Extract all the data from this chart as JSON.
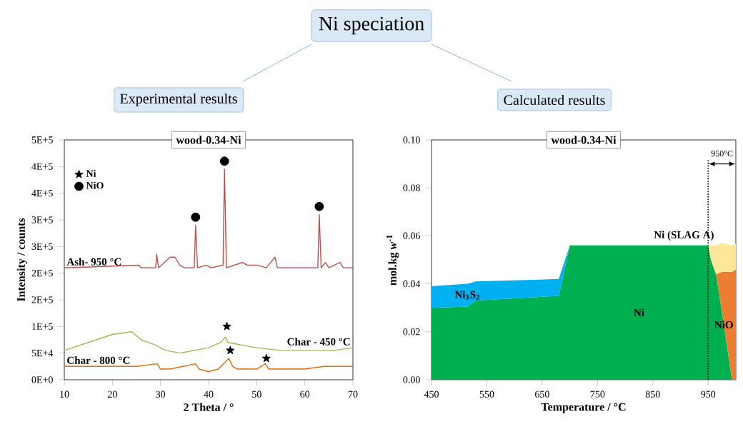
{
  "chart_data": [
    {
      "type": "other",
      "title": "Ni speciation"
    },
    {
      "type": "line",
      "title": "Experimental results",
      "subtitle": "wood-0.34-Ni",
      "xlabel": "2 Theta / °",
      "ylabel": "Intensity / counts",
      "xlim": [
        10,
        70
      ],
      "xticks": [
        10,
        20,
        30,
        40,
        50,
        60,
        70
      ],
      "ylim": [
        0,
        450000
      ],
      "yticks": [
        {
          "value": 0,
          "label": "0E+0"
        },
        {
          "value": 50000,
          "label": "5E+4"
        },
        {
          "value": 100000,
          "label": "1E+5"
        },
        {
          "value": 150000,
          "label": "2E+5"
        },
        {
          "value": 200000,
          "label": "2E+5"
        },
        {
          "value": 250000,
          "label": "3E+5"
        },
        {
          "value": 300000,
          "label": "3E+5"
        },
        {
          "value": 350000,
          "label": "4E+5"
        },
        {
          "value": 400000,
          "label": "4E+5"
        },
        {
          "value": 450000,
          "label": "5E+5"
        }
      ],
      "legend": "top left",
      "grid": false,
      "series": [
        {
          "name": "Ash- 950 °C",
          "color": "#c0504d",
          "x": [
            10,
            25.5,
            26,
            29,
            29.2,
            29.6,
            32,
            33,
            34,
            35,
            37,
            37.3,
            37.7,
            39.5,
            40.5,
            43,
            43.3,
            43.7,
            47,
            48,
            50,
            52,
            53.8,
            54.3,
            62.7,
            63,
            63.4,
            64.3,
            65,
            67.3,
            68,
            70
          ],
          "values": [
            210000,
            215000,
            210000,
            210000,
            235000,
            210000,
            230000,
            230000,
            215000,
            210000,
            210000,
            290000,
            210000,
            215000,
            210000,
            215000,
            395000,
            210000,
            220000,
            215000,
            215000,
            210000,
            230000,
            210000,
            210000,
            310000,
            210000,
            220000,
            210000,
            220000,
            210000,
            210000
          ]
        },
        {
          "name": "Char - 450 °C",
          "color": "#9bbb59",
          "x": [
            10,
            15,
            20,
            24,
            26,
            29,
            31,
            34,
            37,
            40,
            42.5,
            43.5,
            44,
            47,
            50,
            55,
            58,
            62,
            66,
            70
          ],
          "values": [
            55000,
            70000,
            85000,
            90000,
            75000,
            65000,
            55000,
            50000,
            55000,
            60000,
            70000,
            80000,
            70000,
            65000,
            60000,
            55000,
            55000,
            55000,
            55000,
            60000
          ]
        },
        {
          "name": "Char - 800 °C",
          "color": "#e46c0a",
          "x": [
            10,
            20,
            25,
            29.3,
            30,
            32,
            37.3,
            38,
            40,
            42,
            44.2,
            45,
            46,
            50,
            51.8,
            52.5,
            54,
            56,
            60,
            64,
            70
          ],
          "values": [
            25000,
            25000,
            25000,
            30000,
            20000,
            20000,
            30000,
            20000,
            15000,
            20000,
            40000,
            25000,
            20000,
            20000,
            30000,
            20000,
            20000,
            20000,
            20000,
            25000,
            25000
          ]
        },
        {
          "type": "scatter",
          "name": "Ni",
          "marker": "star",
          "color": "#000000",
          "x": [
            43.8,
            44.5,
            52
          ],
          "values": [
            100000,
            55000,
            40000
          ]
        },
        {
          "type": "scatter",
          "name": "NiO",
          "marker": "circle",
          "color": "#000000",
          "x": [
            37.3,
            43.3,
            63
          ],
          "values": [
            305000,
            410000,
            325000
          ]
        }
      ]
    },
    {
      "type": "area",
      "stacked": true,
      "title": "Calculated results",
      "subtitle": "wood-0.34-Ni",
      "xlabel": "Temperature / °C",
      "ylabel": "mol.kg *w*$^{-1}$",
      "xlim": [
        450,
        1000
      ],
      "xticks": [
        450,
        550,
        650,
        750,
        850,
        950
      ],
      "ylim": [
        0,
        0.1
      ],
      "yticks": [
        {
          "value": 0,
          "label": "0.00"
        },
        {
          "value": 0.02,
          "label": "0.02"
        },
        {
          "value": 0.04,
          "label": "0.04"
        },
        {
          "value": 0.06,
          "label": "0.06"
        },
        {
          "value": 0.08,
          "label": "0.08"
        },
        {
          "value": 0.1,
          "label": "0.10"
        }
      ],
      "grid": false,
      "x": [
        450,
        515,
        530,
        680,
        700,
        950,
        955,
        965,
        975,
        993,
        1000
      ],
      "series": [
        {
          "name": "Ni",
          "color": "#00b050",
          "values": [
            0.03,
            0.0305,
            0.033,
            0.035,
            0.056,
            0.056,
            0.05,
            0.043,
            0.028,
            0,
            0
          ]
        },
        {
          "name": "NiO",
          "color": "#ed7d31",
          "values": [
            null,
            null,
            null,
            null,
            null,
            null,
            0,
            0.001,
            0.017,
            0.045,
            0.046
          ]
        },
        {
          "name": "Ni$_{3}$S$_{2}$",
          "color": "#00b0f0",
          "values": [
            0.009,
            0.0095,
            0.008,
            0.007,
            0,
            null,
            null,
            null,
            null,
            null,
            null
          ]
        },
        {
          "name": "Ni (SLAG A)",
          "color": "#ffe699",
          "values": [
            null,
            null,
            null,
            null,
            null,
            0,
            0.006,
            0.012,
            0.012,
            0.011,
            0.011
          ]
        }
      ],
      "ref_lines": [
        {
          "axis": "x",
          "value": 950,
          "label": "950°C",
          "line_style": "dotted"
        }
      ]
    }
  ]
}
